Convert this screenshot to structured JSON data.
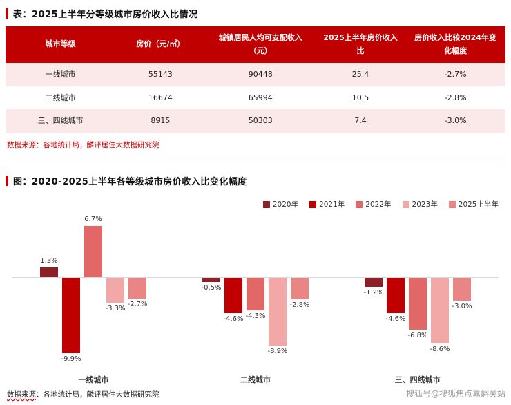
{
  "accent_color": "#c00000",
  "table_section": {
    "title": "表：2025上半年分等级城市房价收入比情况",
    "headers": [
      "城市等级",
      "房价（元/㎡）",
      "城镇居民人均可支配收入（元）",
      "2025上半年房价收入比",
      "房价收入比较2024年变化幅度"
    ],
    "rows": [
      [
        "一线城市",
        "55143",
        "90448",
        "25.4",
        "-2.7%"
      ],
      [
        "二线城市",
        "16674",
        "65994",
        "10.5",
        "-2.8%"
      ],
      [
        "三、四线城市",
        "8915",
        "50303",
        "7.4",
        "-3.0%"
      ]
    ],
    "source": "数据来源：各地统计局，麟评居住大数据研究院"
  },
  "chart_section": {
    "title": "图：2020-2025上半年各等级城市房价收入比变化幅度",
    "source_prefix": "数据来源",
    "source_rest": "：各地统计局，麟评居住大数据研究院"
  },
  "watermark": "搜狐号@搜狐焦点嘉峪关站",
  "chart_data": {
    "type": "bar",
    "title": "2020-2025上半年各等级城市房价收入比变化幅度",
    "categories": [
      "一线城市",
      "二线城市",
      "三、四线城市"
    ],
    "series": [
      {
        "name": "2020年",
        "color": "#8e1f26",
        "values": [
          1.3,
          -0.5,
          -1.2
        ]
      },
      {
        "name": "2021年",
        "color": "#c00000",
        "values": [
          -9.9,
          -4.6,
          -4.6
        ]
      },
      {
        "name": "2022年",
        "color": "#e26868",
        "values": [
          6.7,
          -4.3,
          -6.8
        ]
      },
      {
        "name": "2023年",
        "color": "#f3a8a8",
        "values": [
          -3.3,
          -8.9,
          -8.6
        ]
      },
      {
        "name": "2025上半年",
        "color": "#ea8585",
        "values": [
          -2.7,
          -2.8,
          -3.0
        ]
      }
    ],
    "value_suffix": "%",
    "ylim": [
      -11,
      8
    ],
    "grid": false,
    "legend_position": "top-right"
  }
}
